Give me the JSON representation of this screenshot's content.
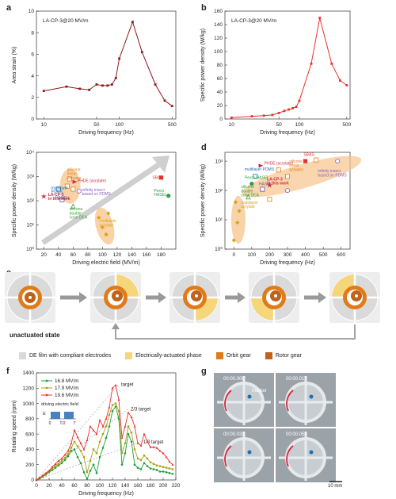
{
  "panel_labels": {
    "a": "a",
    "b": "b",
    "c": "c",
    "d": "d",
    "e": "e",
    "f": "f",
    "g": "g"
  },
  "chart_data": [
    {
      "id": "a",
      "type": "line",
      "xscale": "log",
      "xlabel": "Driving frequency (Hz)",
      "ylabel": "Area strain (%)",
      "annotation": "LA-CP-3@20 MV/m",
      "xlim": [
        8,
        560
      ],
      "ylim": [
        0,
        10
      ],
      "xticks": [
        10,
        50,
        100,
        500
      ],
      "yticks": [
        0,
        2,
        4,
        6,
        8,
        10
      ],
      "color": "#8B1A1A",
      "x": [
        10,
        20,
        30,
        40,
        50,
        60,
        70,
        80,
        90,
        100,
        150,
        200,
        300,
        400,
        500
      ],
      "y": [
        2.6,
        3.0,
        2.8,
        2.7,
        3.2,
        3.1,
        3.1,
        3.2,
        3.8,
        5.6,
        9.0,
        6.2,
        3.2,
        1.7,
        1.2
      ]
    },
    {
      "id": "b",
      "type": "line",
      "xscale": "log",
      "xlabel": "Driving frequency (Hz)",
      "ylabel": "Specific power density (W/kg)",
      "annotation": "LA-CP-3@20 MV/m",
      "xlim": [
        8,
        560
      ],
      "ylim": [
        0,
        160
      ],
      "xticks": [
        10,
        50,
        100,
        500
      ],
      "yticks": [
        0,
        20,
        40,
        60,
        80,
        100,
        120,
        140,
        160
      ],
      "color": "#E8312E",
      "x": [
        10,
        20,
        30,
        40,
        50,
        60,
        70,
        80,
        90,
        100,
        150,
        200,
        300,
        400,
        500
      ],
      "y": [
        2,
        4,
        5,
        6,
        9,
        12,
        14,
        16,
        18,
        27,
        82,
        150,
        82,
        57,
        50
      ]
    },
    {
      "id": "c",
      "type": "scatter",
      "yscale": "log",
      "xlabel": "Driving electric field (MV/m)",
      "ylabel": "Specific power density (W/kg)",
      "xlim": [
        10,
        200
      ],
      "ylim": [
        1,
        10000
      ],
      "xticks": [
        20,
        40,
        60,
        80,
        100,
        120,
        140,
        160,
        180
      ],
      "ytick_labels": [
        "10⁰",
        "10¹",
        "10²",
        "10³",
        "10⁴"
      ],
      "labels": [
        {
          "text": "LA-CP-3\nin this work",
          "color": "#D7263D",
          "x": 20,
          "y": 150
        },
        {
          "text": "multilayer\nPDMS",
          "color": "#1F6FB2",
          "x": 40,
          "y": 300
        },
        {
          "text": "HASEL",
          "color": "#6A4C9C",
          "x": 44,
          "y": 110
        },
        {
          "text": "silicone\nlinear\nactuator",
          "color": "#E07B1A",
          "x": 52,
          "y": 1100
        },
        {
          "text": "PHDE (acrylate)",
          "color": "#D7263D",
          "x": 70,
          "y": 600
        },
        {
          "text": "infinity insect\nbased on PDMS",
          "color": "#8E5BC2",
          "x": 78,
          "y": 220
        },
        {
          "text": "silicone\ndouble\ncone DEA",
          "color": "#3A9D3A",
          "x": 58,
          "y": 35
        },
        {
          "text": "SBAS",
          "color": "#E8312E",
          "x": 183,
          "y": 700
        },
        {
          "text": "Pexro-\nHASEL",
          "color": "#2E9E4E",
          "x": 183,
          "y": 170
        },
        {
          "text": "multilayer\nacrylate",
          "color": "#D9A21A",
          "x": 100,
          "y": 10
        }
      ],
      "points": [
        {
          "x": 20,
          "y": 150,
          "color": "#D7263D",
          "marker": "star"
        },
        {
          "x": 40,
          "y": 300,
          "color": "#1F6FB2",
          "marker": "square-open"
        },
        {
          "x": 45,
          "y": 110,
          "color": "#6A4C9C",
          "marker": "square-open"
        },
        {
          "x": 52,
          "y": 400,
          "color": "#E07B1A",
          "marker": "square-open"
        },
        {
          "x": 55,
          "y": 800,
          "color": "#E07B1A",
          "marker": "square-open"
        },
        {
          "x": 60,
          "y": 300,
          "color": "#E07B1A",
          "marker": "square-open"
        },
        {
          "x": 62,
          "y": 600,
          "color": "#D7263D",
          "marker": "triangle"
        },
        {
          "x": 68,
          "y": 250,
          "color": "#8E5BC2",
          "marker": "circle-open"
        },
        {
          "x": 60,
          "y": 60,
          "color": "#3A9D3A",
          "marker": "triangle-open"
        },
        {
          "x": 180,
          "y": 900,
          "color": "#E8312E",
          "marker": "square"
        },
        {
          "x": 190,
          "y": 160,
          "color": "#2E9E4E",
          "marker": "circle"
        },
        {
          "x": 95,
          "y": 20,
          "color": "#D9A21A",
          "marker": "diamond"
        },
        {
          "x": 100,
          "y": 8,
          "color": "#D9A21A",
          "marker": "diamond"
        },
        {
          "x": 105,
          "y": 4,
          "color": "#D9A21A",
          "marker": "diamond"
        },
        {
          "x": 108,
          "y": 30,
          "color": "#D9A21A",
          "marker": "diamond"
        }
      ]
    },
    {
      "id": "d",
      "type": "scatter",
      "yscale": "log",
      "xlabel": "Driving frequency (Hz)",
      "ylabel": "Specific power density (W/kg)",
      "xlim": [
        -50,
        650
      ],
      "ylim": [
        1,
        2000
      ],
      "xticks": [
        0,
        100,
        200,
        300,
        400,
        500,
        600
      ],
      "ytick_labels": [
        "10⁰",
        "10¹",
        "10²",
        "10³"
      ],
      "labels": [
        {
          "text": "SBAS",
          "color": "#E8312E"
        },
        {
          "text": "PHDE (acrylate)",
          "color": "#D7263D"
        },
        {
          "text": "multilayer PDMS",
          "color": "#1F6FB2"
        },
        {
          "text": "silicone\nlinear\nactuator",
          "color": "#E07B1A"
        },
        {
          "text": "LA-CP-3\nin this work",
          "color": "#D7263D"
        },
        {
          "text": "infinity insect\nbased on PDMS",
          "color": "#8E5BC2"
        },
        {
          "text": "Pexro-HASEL",
          "color": "#2E9E4E"
        },
        {
          "text": "HASEL",
          "color": "#6A4C9C"
        },
        {
          "text": "silicone\ndouble\ncone DEA",
          "color": "#3A9D3A"
        },
        {
          "text": "multilayer\nacrylate",
          "color": "#D9A21A"
        }
      ],
      "points": [
        {
          "x": 400,
          "y": 1000,
          "color": "#E8312E",
          "marker": "square"
        },
        {
          "x": 150,
          "y": 700,
          "color": "#D7263D",
          "marker": "triangle"
        },
        {
          "x": 120,
          "y": 300,
          "color": "#1F6FB2",
          "marker": "square-open"
        },
        {
          "x": 200,
          "y": 150,
          "color": "#D7263D",
          "marker": "star"
        },
        {
          "x": 250,
          "y": 500,
          "color": "#E07B1A",
          "marker": "square-open"
        },
        {
          "x": 300,
          "y": 300,
          "color": "#E07B1A",
          "marker": "square-open"
        },
        {
          "x": 200,
          "y": 50,
          "color": "#E07B1A",
          "marker": "square-open"
        },
        {
          "x": 460,
          "y": 1100,
          "color": "#E07B1A",
          "marker": "square-open"
        },
        {
          "x": 580,
          "y": 1000,
          "color": "#8E5BC2",
          "marker": "circle-open"
        },
        {
          "x": 300,
          "y": 100,
          "color": "#8E5BC2",
          "marker": "circle-open"
        },
        {
          "x": 100,
          "y": 170,
          "color": "#2E9E4E",
          "marker": "circle"
        },
        {
          "x": 160,
          "y": 110,
          "color": "#6A4C9C",
          "marker": "square-open"
        },
        {
          "x": 80,
          "y": 60,
          "color": "#3A9D3A",
          "marker": "triangle-open"
        },
        {
          "x": 10,
          "y": 40,
          "color": "#D9A21A",
          "marker": "diamond"
        },
        {
          "x": 20,
          "y": 8,
          "color": "#D9A21A",
          "marker": "diamond"
        },
        {
          "x": 0,
          "y": 2,
          "color": "#D9A21A",
          "marker": "diamond"
        },
        {
          "x": 30,
          "y": 20,
          "color": "#D9A21A",
          "marker": "diamond"
        }
      ]
    },
    {
      "id": "f",
      "type": "line",
      "xlabel": "Driving frequency (Hz)",
      "ylabel": "Rotating speed (rpm)",
      "xlim": [
        0,
        220
      ],
      "ylim": [
        0,
        1400
      ],
      "xticks": [
        0,
        20,
        40,
        60,
        80,
        100,
        120,
        140,
        160,
        180,
        200,
        220
      ],
      "yticks": [
        0,
        200,
        400,
        600,
        800,
        1000,
        1200,
        1400
      ],
      "inset_title": "driving electric field",
      "inset_ticks": [
        "0",
        "T/2",
        "T"
      ],
      "inset_ylabel": "E",
      "annotations": [
        "target",
        "2/3 target",
        "1/3 target"
      ],
      "targets": [
        {
          "label": "target",
          "x": [
            0,
            130
          ],
          "y": [
            0,
            1250
          ]
        },
        {
          "label": "2/3 target",
          "x": [
            0,
            145
          ],
          "y": [
            0,
            930
          ]
        },
        {
          "label": "1/3 target",
          "x": [
            0,
            165
          ],
          "y": [
            0,
            500
          ]
        }
      ],
      "series": [
        {
          "name": "16.8 MV/m",
          "color": "#1F9E3A",
          "x": [
            0,
            5,
            10,
            15,
            20,
            25,
            30,
            35,
            40,
            45,
            50,
            55,
            60,
            65,
            70,
            75,
            80,
            85,
            90,
            95,
            100,
            105,
            110,
            115,
            120,
            125,
            130,
            135,
            140,
            145,
            150,
            155,
            160,
            165,
            170,
            175,
            180,
            185,
            190,
            195,
            200,
            205,
            210,
            215
          ],
          "y": [
            0,
            20,
            40,
            70,
            100,
            130,
            160,
            190,
            220,
            260,
            310,
            380,
            400,
            300,
            220,
            100,
            10,
            120,
            200,
            90,
            300,
            420,
            550,
            700,
            900,
            960,
            800,
            200,
            350,
            600,
            500,
            200,
            160,
            140,
            220,
            180,
            150,
            140,
            130,
            110,
            110,
            100,
            90,
            80
          ]
        },
        {
          "name": "17.9 MV/m",
          "color": "#A9A219",
          "x": [
            0,
            5,
            10,
            15,
            20,
            25,
            30,
            35,
            40,
            45,
            50,
            55,
            60,
            65,
            70,
            75,
            80,
            85,
            90,
            95,
            100,
            105,
            110,
            115,
            120,
            125,
            130,
            135,
            140,
            145,
            150,
            155,
            160,
            165,
            170,
            175,
            180,
            185,
            190,
            195,
            200,
            205,
            210,
            215
          ],
          "y": [
            0,
            25,
            50,
            80,
            110,
            150,
            180,
            210,
            250,
            290,
            340,
            420,
            500,
            440,
            380,
            300,
            100,
            250,
            400,
            350,
            500,
            600,
            700,
            850,
            980,
            1000,
            900,
            350,
            480,
            700,
            620,
            400,
            280,
            260,
            320,
            280,
            230,
            210,
            190,
            180,
            170,
            160,
            150,
            140
          ]
        },
        {
          "name": "19.6 MV/m",
          "color": "#E8312E",
          "x": [
            0,
            5,
            10,
            15,
            20,
            25,
            30,
            35,
            40,
            45,
            50,
            55,
            60,
            65,
            70,
            75,
            80,
            85,
            90,
            95,
            100,
            105,
            110,
            115,
            120,
            125,
            130,
            135,
            140,
            145,
            150,
            155,
            160,
            165,
            170,
            175,
            180,
            185,
            190,
            195,
            200,
            205,
            210,
            215
          ],
          "y": [
            0,
            30,
            60,
            90,
            120,
            170,
            210,
            250,
            280,
            330,
            380,
            480,
            650,
            560,
            480,
            400,
            520,
            700,
            650,
            600,
            780,
            700,
            800,
            950,
            1200,
            1240,
            1050,
            550,
            700,
            880,
            820,
            700,
            480,
            450,
            600,
            500,
            430,
            430,
            420,
            380,
            350,
            300,
            240,
            200
          ]
        }
      ]
    }
  ],
  "panel_e": {
    "state_label": "unactuated state",
    "legend": [
      {
        "label": "DE film with compliant electrodes",
        "color": "#D9D9D9"
      },
      {
        "label": "Electrically-actuated phase",
        "color": "#F6D67A"
      },
      {
        "label": "Orbit gear",
        "color": "#E07B1A"
      },
      {
        "label": "Rotor gear",
        "color": "#C0621A"
      }
    ]
  },
  "panel_g": {
    "timestamps": [
      "00:00.000",
      "00:00.017",
      "00:00.033",
      "00:00.050"
    ],
    "marker_label": "marker",
    "scale_bar": "10 mm"
  }
}
